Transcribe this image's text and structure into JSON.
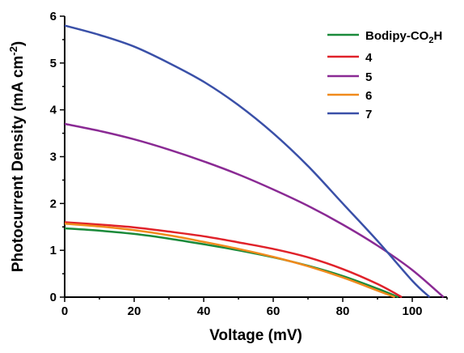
{
  "chart_data": {
    "type": "line",
    "xlabel": "Voltage (mV)",
    "ylabel": {
      "prefix": "Photocurrent Density (mA cm",
      "sup": "-2",
      "suffix": ")"
    },
    "xlim": [
      0,
      110
    ],
    "ylim": [
      0,
      6
    ],
    "xticks": [
      0,
      20,
      40,
      60,
      80,
      100
    ],
    "yticks": [
      0,
      1,
      2,
      3,
      4,
      5,
      6
    ],
    "grid": false,
    "legend_position": "top-right",
    "series": [
      {
        "name": "Bodipy-CO2H",
        "name_parts": {
          "main": "Bodipy-CO",
          "sub": "2",
          "tail": "H"
        },
        "color": "#1a8a3a",
        "x": [
          0,
          10,
          20,
          30,
          40,
          50,
          60,
          70,
          80,
          90,
          96
        ],
        "y": [
          1.47,
          1.42,
          1.35,
          1.25,
          1.13,
          1.0,
          0.85,
          0.67,
          0.45,
          0.18,
          0
        ]
      },
      {
        "name": "4",
        "color": "#e0222a",
        "x": [
          0,
          10,
          20,
          30,
          40,
          50,
          60,
          70,
          80,
          90,
          97
        ],
        "y": [
          1.6,
          1.55,
          1.49,
          1.4,
          1.3,
          1.17,
          1.03,
          0.85,
          0.6,
          0.28,
          0
        ]
      },
      {
        "name": "5",
        "color": "#8a2a94",
        "x": [
          0,
          10,
          20,
          30,
          40,
          50,
          60,
          70,
          80,
          90,
          100,
          109
        ],
        "y": [
          3.7,
          3.55,
          3.37,
          3.15,
          2.9,
          2.62,
          2.3,
          1.95,
          1.55,
          1.1,
          0.58,
          0
        ]
      },
      {
        "name": "6",
        "color": "#f08a1c",
        "x": [
          0,
          10,
          20,
          30,
          40,
          50,
          60,
          70,
          80,
          90,
          95
        ],
        "y": [
          1.57,
          1.51,
          1.43,
          1.32,
          1.18,
          1.03,
          0.86,
          0.66,
          0.42,
          0.14,
          0
        ]
      },
      {
        "name": "7",
        "color": "#3a50a8",
        "x": [
          0,
          10,
          20,
          30,
          40,
          50,
          60,
          70,
          80,
          90,
          100,
          105
        ],
        "y": [
          5.8,
          5.6,
          5.35,
          5.0,
          4.6,
          4.1,
          3.5,
          2.8,
          2.0,
          1.2,
          0.35,
          0
        ]
      }
    ]
  }
}
